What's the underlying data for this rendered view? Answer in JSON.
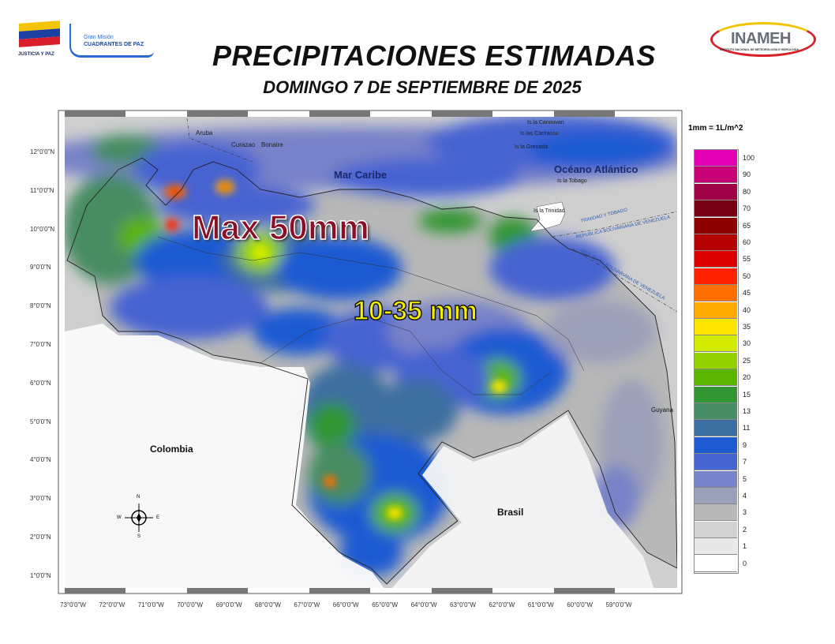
{
  "header": {
    "title": "PRECIPITACIONES ESTIMADAS",
    "subtitle": "DOMINGO 7 DE SEPTIEMBRE DE 2025",
    "logo_left_1": "JUSTICIA Y PAZ",
    "logo_left_2_line1": "Gran Misión",
    "logo_left_2_line2": "CUADRANTES DE PAZ",
    "logo_right": "INAMEH",
    "logo_right_sub": "INSTITUTO NACIONAL DE METEOROLOGÍA E HIDROLOGÍA"
  },
  "map": {
    "annotations": {
      "max": "Max 50mm",
      "range": "10-35 mm"
    },
    "places": {
      "mar_caribe": "Mar Caribe",
      "oceano": "Océano Atlántico",
      "colombia": "Colombia",
      "brasil": "Brasil",
      "guyana": "Guyana",
      "aruba": "Aruba",
      "curazao": "Curazao",
      "bonaire": "Bonaire",
      "canouvan": "Is la Canouvan",
      "carriacou": "Is las Carriacou",
      "grenada": "Is la Grenada",
      "tobago": "Is la Tobago",
      "trinidad": "Is la Trinidad",
      "border1": "TRINIDAD Y TOBAGO",
      "border2": "REPUBLICA BOLIVARIANA DE VENEZUELA",
      "border3": "REPUBLICA BOLIVARIANA DE VENEZUELA"
    },
    "lat_labels": [
      "12°0'0\"N",
      "11°0'0\"N",
      "10°0'0\"N",
      "9°0'0\"N",
      "8°0'0\"N",
      "7°0'0\"N",
      "6°0'0\"N",
      "5°0'0\"N",
      "4°0'0\"N",
      "3°0'0\"N",
      "2°0'0\"N",
      "1°0'0\"N"
    ],
    "lon_labels": [
      "73°0'0\"W",
      "72°0'0\"W",
      "71°0'0\"W",
      "70°0'0\"W",
      "69°0'0\"W",
      "68°0'0\"W",
      "67°0'0\"W",
      "66°0'0\"W",
      "65°0'0\"W",
      "64°0'0\"W",
      "63°0'0\"W",
      "62°0'0\"W",
      "61°0'0\"W",
      "60°0'0\"W",
      "59°0'0\"W"
    ],
    "compass": {
      "n": "N",
      "s": "S",
      "e": "E",
      "w": "W"
    }
  },
  "legend": {
    "unit": "1mm = 1L/m^2",
    "items": [
      {
        "label": "100",
        "color": "#e600b4"
      },
      {
        "label": "90",
        "color": "#c80078"
      },
      {
        "label": "80",
        "color": "#a00046"
      },
      {
        "label": "70",
        "color": "#780014"
      },
      {
        "label": "65",
        "color": "#8c0000"
      },
      {
        "label": "60",
        "color": "#b40000"
      },
      {
        "label": "55",
        "color": "#dc0000"
      },
      {
        "label": "50",
        "color": "#ff2200"
      },
      {
        "label": "45",
        "color": "#ff6e00"
      },
      {
        "label": "40",
        "color": "#ffaa00"
      },
      {
        "label": "35",
        "color": "#ffe600"
      },
      {
        "label": "30",
        "color": "#d2eb00"
      },
      {
        "label": "25",
        "color": "#96d200"
      },
      {
        "label": "20",
        "color": "#5ab400"
      },
      {
        "label": "15",
        "color": "#329632"
      },
      {
        "label": "13",
        "color": "#468c64"
      },
      {
        "label": "11",
        "color": "#3c6ea0"
      },
      {
        "label": "9",
        "color": "#1e5ad2"
      },
      {
        "label": "7",
        "color": "#4664d2"
      },
      {
        "label": "5",
        "color": "#7882c8"
      },
      {
        "label": "4",
        "color": "#9ba0b9"
      },
      {
        "label": "3",
        "color": "#b9b9b9"
      },
      {
        "label": "2",
        "color": "#d2d2d2"
      },
      {
        "label": "1",
        "color": "#e8e8e8"
      },
      {
        "label": "0",
        "color": "#ffffff"
      }
    ]
  }
}
